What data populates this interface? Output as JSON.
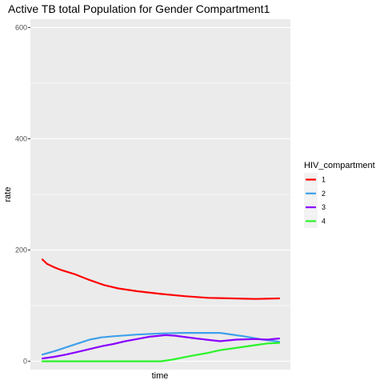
{
  "chart_data": {
    "type": "line",
    "title": "Active TB total Population for Gender Compartment1",
    "xlabel": "time",
    "ylabel": "rate",
    "xlim": [
      0,
      1
    ],
    "ylim": [
      -15,
      615
    ],
    "y_ticks": [
      0,
      200,
      400,
      600
    ],
    "y_tick_labels": [
      "0",
      "200",
      "400",
      "600"
    ],
    "x_ticks": [],
    "grid": true,
    "legend": {
      "title": "HIV_compartment",
      "position": "right"
    },
    "series": [
      {
        "name": "1",
        "color": "#ff0000",
        "points": [
          [
            0.0,
            183
          ],
          [
            0.02,
            175
          ],
          [
            0.05,
            169
          ],
          [
            0.08,
            164
          ],
          [
            0.14,
            156
          ],
          [
            0.2,
            146
          ],
          [
            0.26,
            137
          ],
          [
            0.32,
            131
          ],
          [
            0.4,
            126
          ],
          [
            0.5,
            121
          ],
          [
            0.6,
            117
          ],
          [
            0.7,
            114
          ],
          [
            0.8,
            113
          ],
          [
            0.9,
            112
          ],
          [
            1.0,
            113
          ]
        ]
      },
      {
        "name": "2",
        "color": "#3ea0ea",
        "points": [
          [
            0.0,
            12
          ],
          [
            0.05,
            18
          ],
          [
            0.1,
            25
          ],
          [
            0.15,
            32
          ],
          [
            0.2,
            39
          ],
          [
            0.25,
            43
          ],
          [
            0.3,
            45
          ],
          [
            0.4,
            48
          ],
          [
            0.5,
            50
          ],
          [
            0.6,
            51
          ],
          [
            0.75,
            51
          ],
          [
            0.85,
            45
          ],
          [
            0.93,
            39
          ],
          [
            1.0,
            35
          ]
        ]
      },
      {
        "name": "3",
        "color": "#8a00ff",
        "points": [
          [
            0.0,
            5
          ],
          [
            0.05,
            8
          ],
          [
            0.1,
            12
          ],
          [
            0.15,
            17
          ],
          [
            0.2,
            22
          ],
          [
            0.25,
            27
          ],
          [
            0.3,
            31
          ],
          [
            0.35,
            36
          ],
          [
            0.4,
            40
          ],
          [
            0.45,
            44
          ],
          [
            0.52,
            47
          ],
          [
            0.56,
            46
          ],
          [
            0.65,
            41
          ],
          [
            0.75,
            36
          ],
          [
            0.82,
            39
          ],
          [
            0.9,
            40
          ],
          [
            0.95,
            39
          ],
          [
            1.0,
            41
          ]
        ]
      },
      {
        "name": "4",
        "color": "#2af42a",
        "points": [
          [
            0.0,
            0
          ],
          [
            0.1,
            0
          ],
          [
            0.2,
            0
          ],
          [
            0.3,
            0
          ],
          [
            0.4,
            0
          ],
          [
            0.5,
            0
          ],
          [
            0.55,
            3
          ],
          [
            0.62,
            9
          ],
          [
            0.7,
            15
          ],
          [
            0.75,
            20
          ],
          [
            0.8,
            23
          ],
          [
            0.85,
            26
          ],
          [
            0.9,
            29
          ],
          [
            0.95,
            32
          ],
          [
            1.0,
            33
          ]
        ]
      }
    ]
  }
}
